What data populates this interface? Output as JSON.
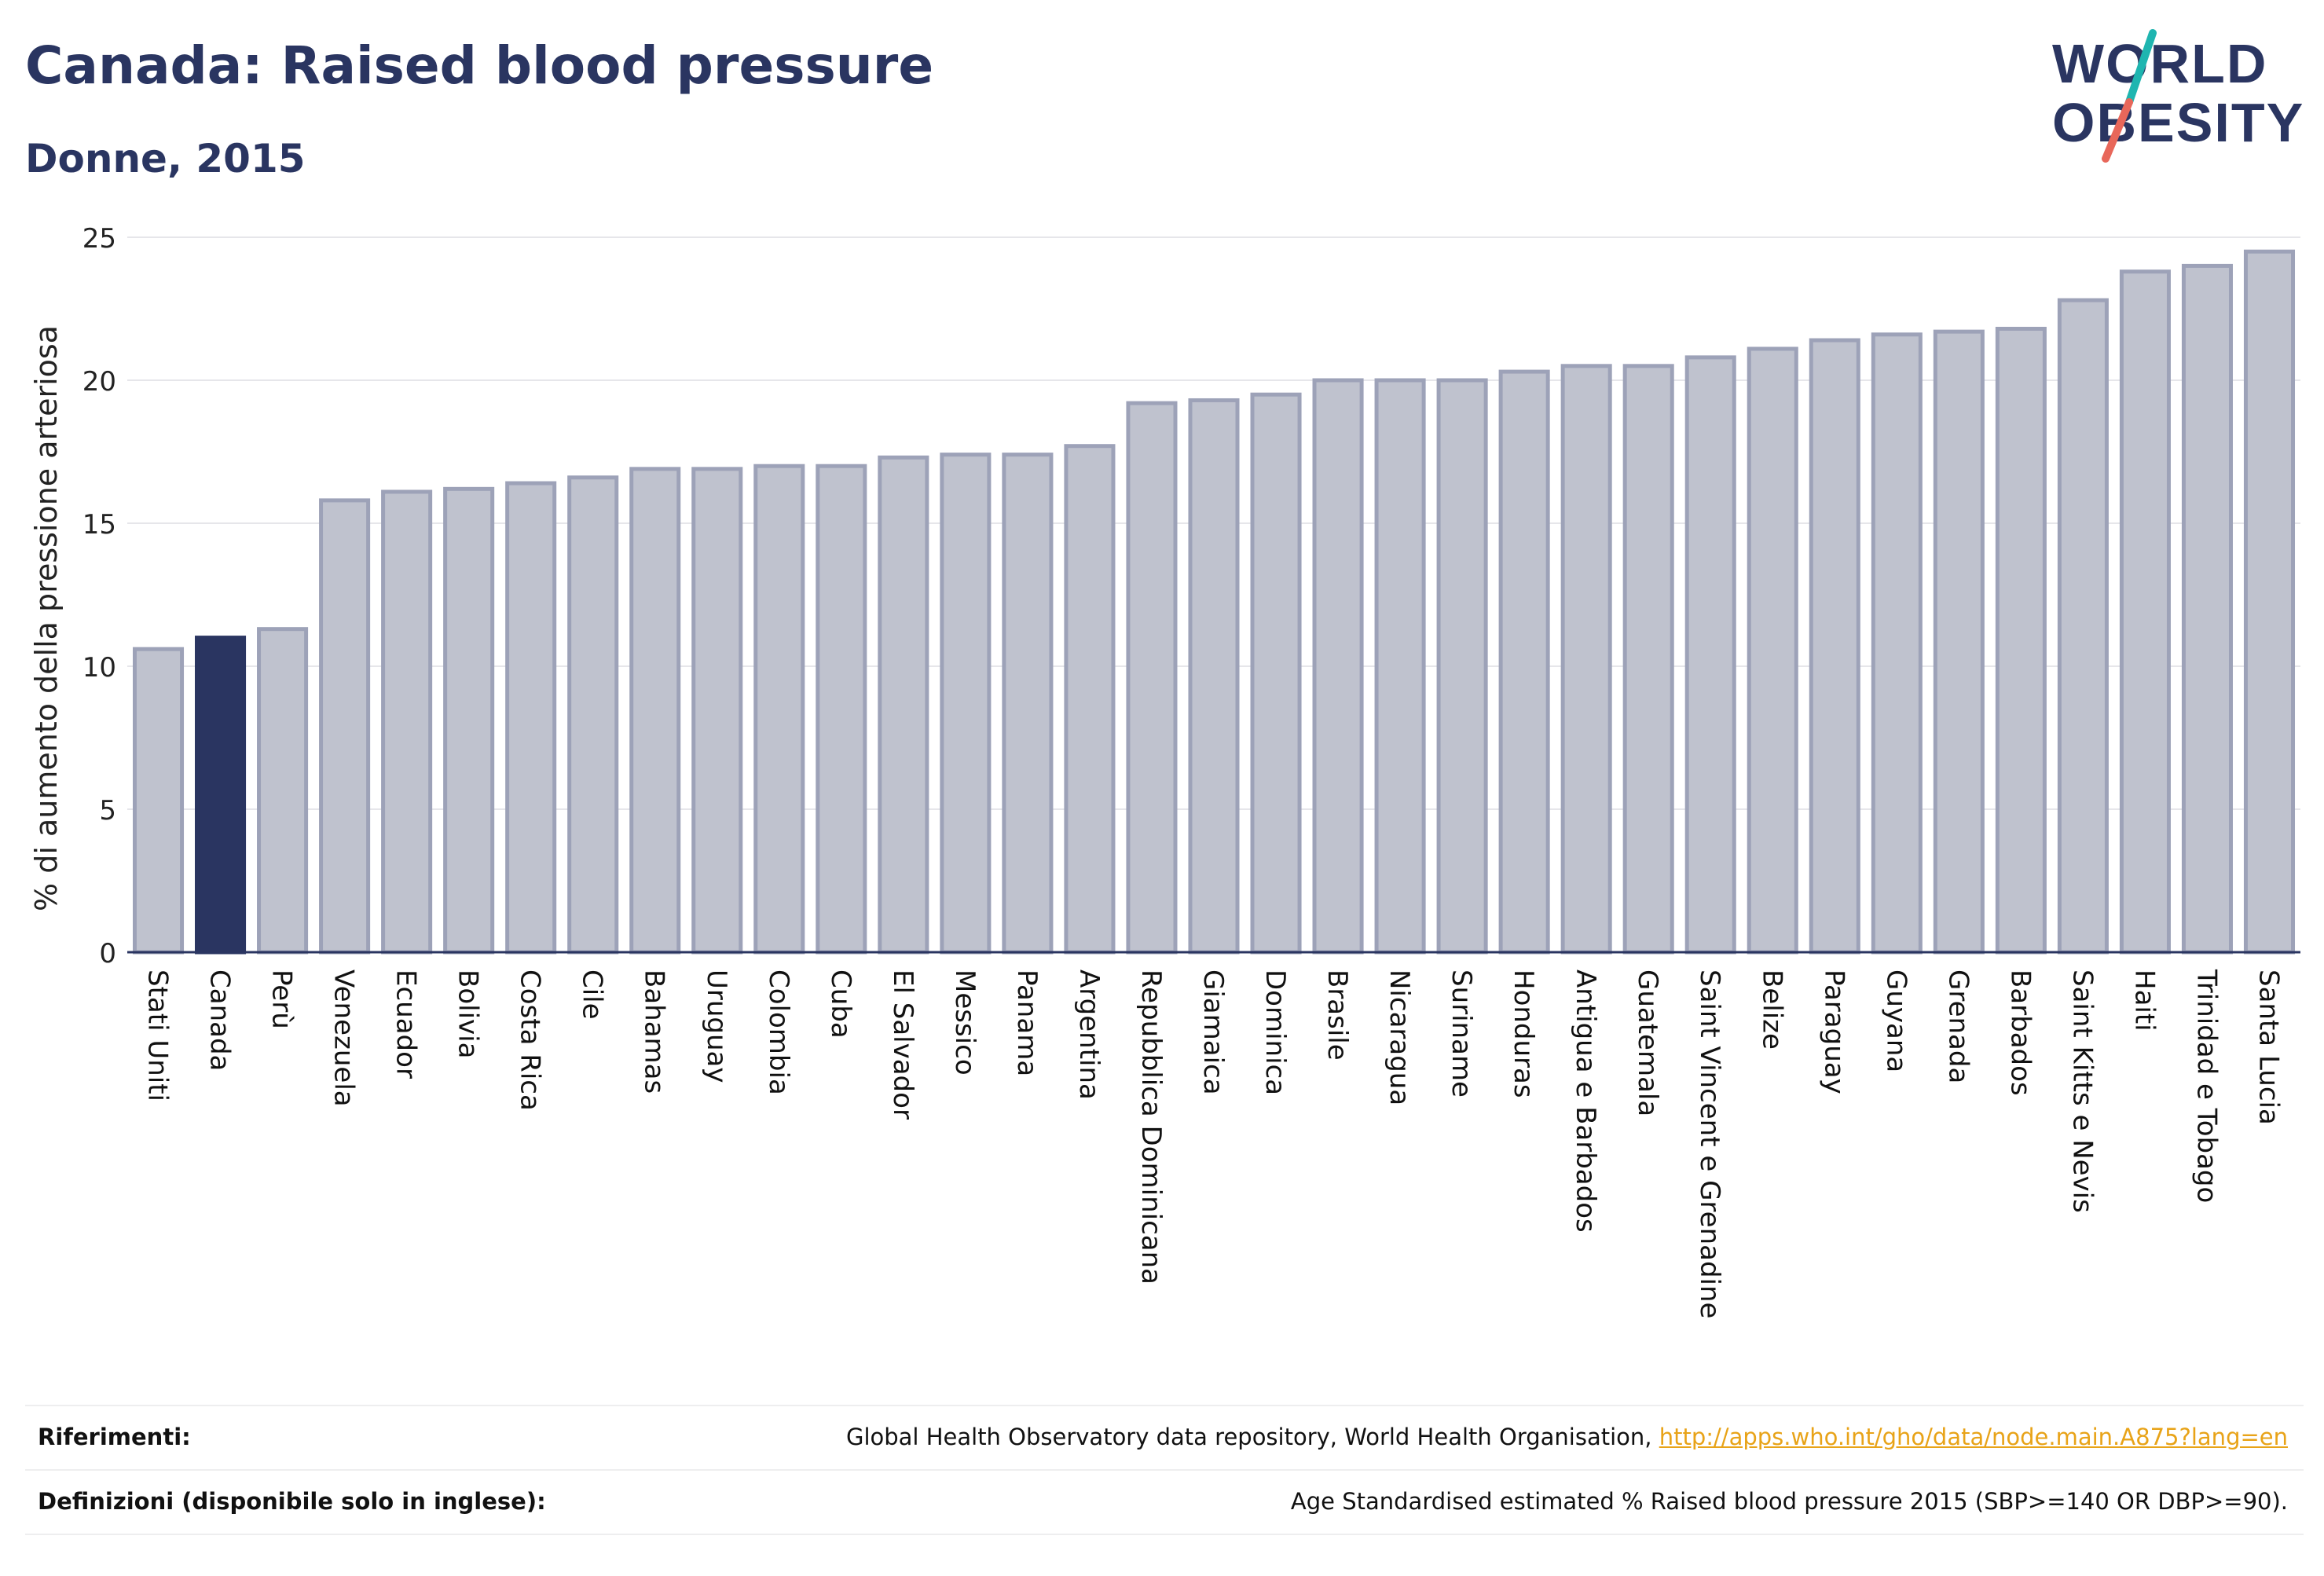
{
  "header": {
    "title": "Canada: Raised blood pressure",
    "subtitle": "Donne, 2015"
  },
  "logo": {
    "line1": "WORLD",
    "line2": "OBESITY",
    "slash_color_top": "#1fb5b0",
    "slash_color_bottom": "#e8675a"
  },
  "chart_data": {
    "type": "bar",
    "ylabel": "% di aumento della pressione arteriosa",
    "xlabel": "",
    "ylim": [
      0,
      25
    ],
    "yticks": [
      0,
      5,
      10,
      15,
      20,
      25
    ],
    "grid": true,
    "highlight": "Canada",
    "colors": {
      "bar": "#bfc2ce",
      "bar_edge": "#9da2b8",
      "highlight": "#2a3561",
      "axis": "#2a3561",
      "grid": "#e6e6ea"
    },
    "categories": [
      "Stati Uniti",
      "Canada",
      "Perù",
      "Venezuela",
      "Ecuador",
      "Bolivia",
      "Costa Rica",
      "Cile",
      "Bahamas",
      "Uruguay",
      "Colombia",
      "Cuba",
      "El Salvador",
      "Messico",
      "Panama",
      "Argentina",
      "Repubblica Dominicana",
      "Giamaica",
      "Dominica",
      "Brasile",
      "Nicaragua",
      "Suriname",
      "Honduras",
      "Antigua e Barbados",
      "Guatemala",
      "Saint Vincent e Grenadine",
      "Belize",
      "Paraguay",
      "Guyana",
      "Grenada",
      "Barbados",
      "Saint Kitts e Nevis",
      "Haiti",
      "Trinidad e Tobago",
      "Santa Lucia"
    ],
    "values": [
      10.6,
      11.0,
      11.3,
      15.8,
      16.1,
      16.2,
      16.4,
      16.6,
      16.9,
      16.9,
      17.0,
      17.0,
      17.3,
      17.4,
      17.4,
      17.7,
      19.2,
      19.3,
      19.5,
      20.0,
      20.0,
      20.0,
      20.3,
      20.5,
      20.5,
      20.8,
      21.1,
      21.4,
      21.6,
      21.7,
      21.8,
      22.8,
      23.8,
      24.0,
      24.5
    ]
  },
  "footer": {
    "references_label": "Riferimenti:",
    "references_text": "Global Health Observatory data repository, World Health Organisation, ",
    "references_link": "http://apps.who.int/gho/data/node.main.A875?lang=en",
    "definitions_label": "Definizioni (disponibile solo in inglese):",
    "definitions_text": "Age Standardised estimated % Raised blood pressure 2015 (SBP>=140 OR DBP>=90)."
  }
}
